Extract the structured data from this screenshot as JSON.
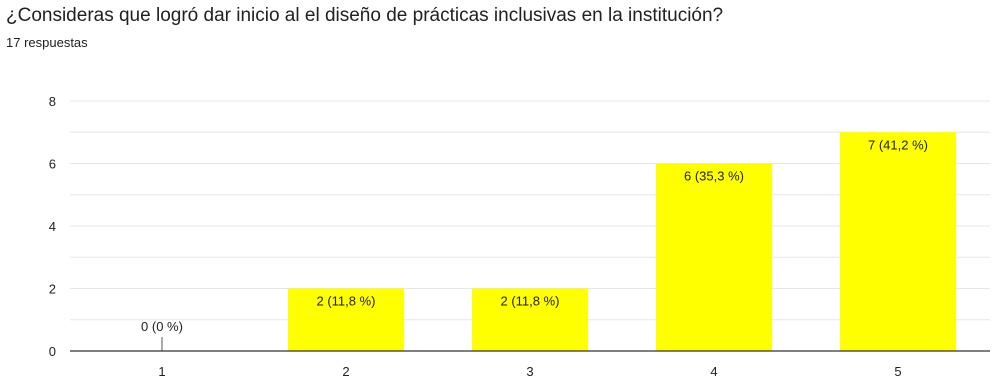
{
  "question": "¿Consideras que logró dar inicio al el diseño de prácticas inclusivas en la institución?",
  "responses": "17 respuestas",
  "chart_data": {
    "type": "bar",
    "categories": [
      "1",
      "2",
      "3",
      "4",
      "5"
    ],
    "values": [
      0,
      2,
      2,
      6,
      7
    ],
    "data_labels": [
      "0 (0 %)",
      "2 (11,8 %)",
      "2 (11,8 %)",
      "6 (35,3 %)",
      "7 (41,2 %)"
    ],
    "ylim": [
      0,
      8
    ],
    "yticks": [
      0,
      2,
      4,
      6,
      8
    ],
    "grid": true,
    "bar_color": "#ffff00",
    "title": "",
    "xlabel": "",
    "ylabel": ""
  }
}
